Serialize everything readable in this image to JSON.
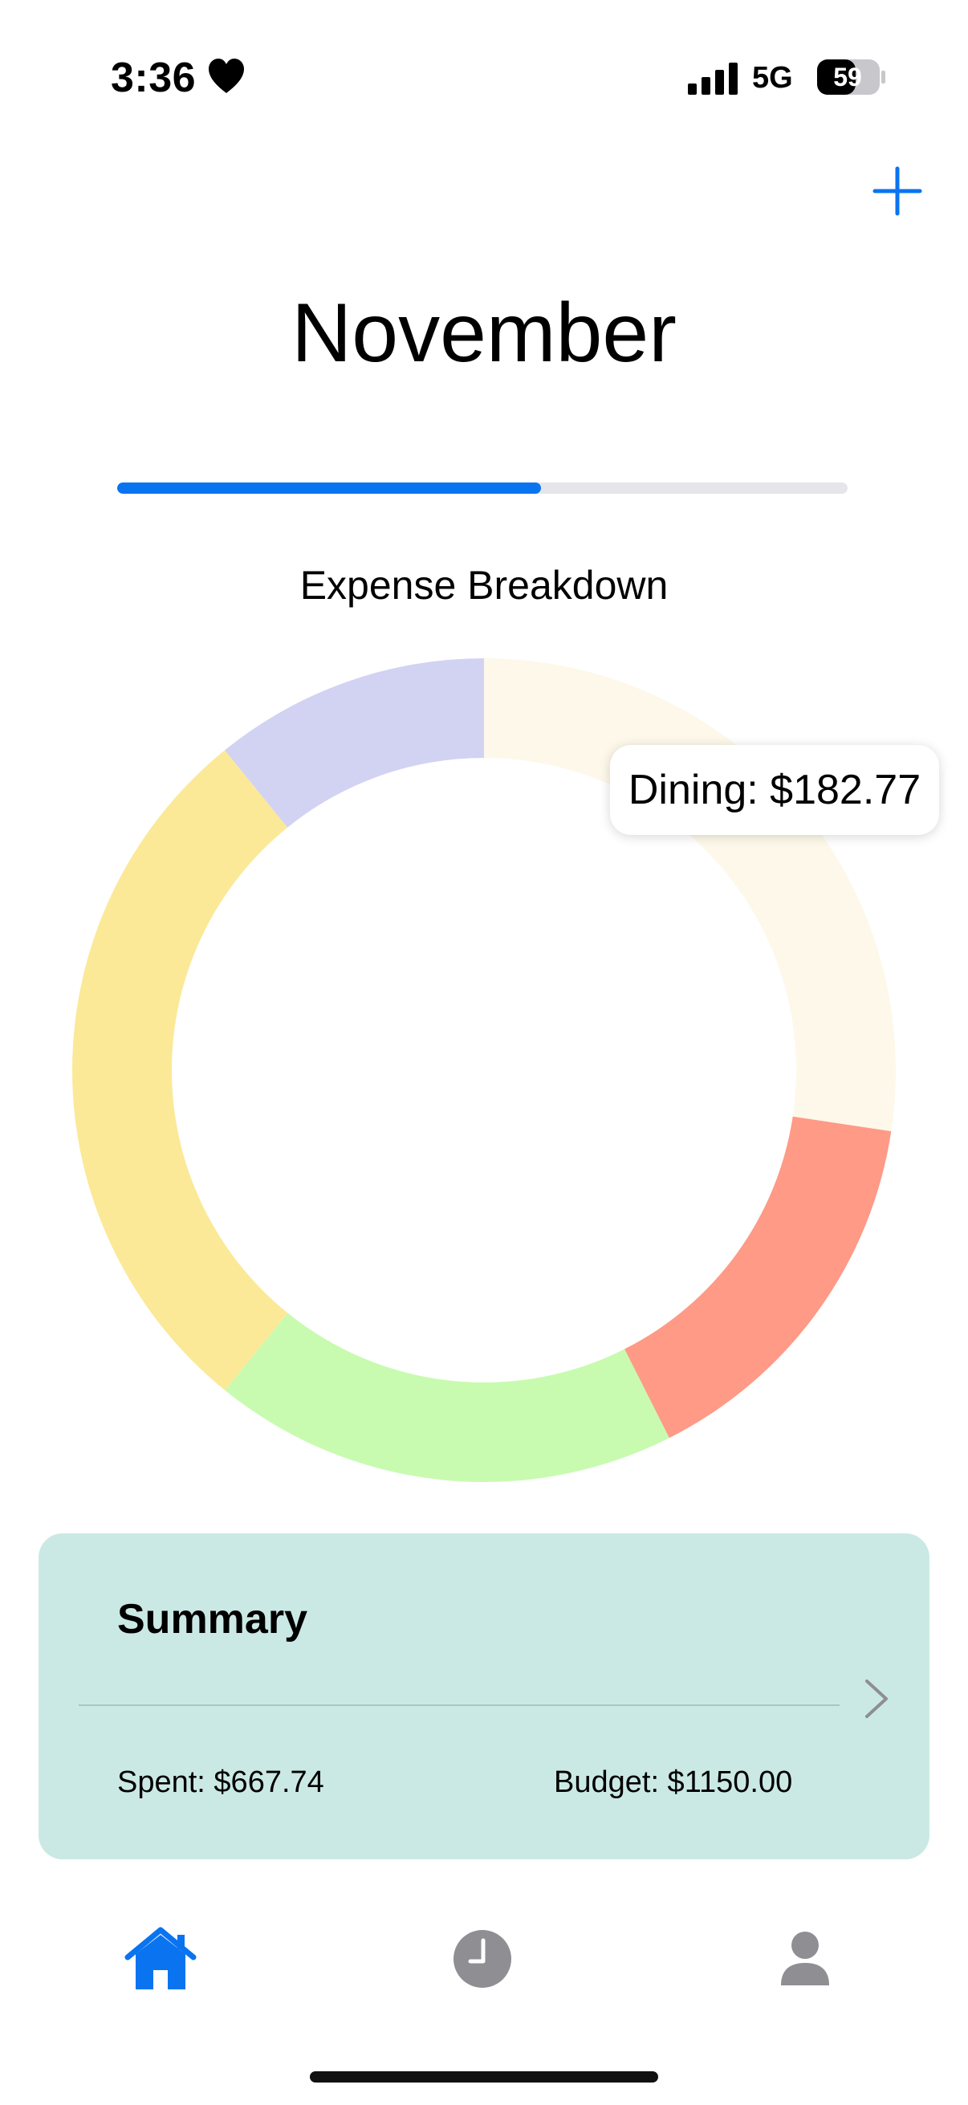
{
  "status_bar": {
    "time": "3:36",
    "network": "5G",
    "battery": "59"
  },
  "header": {
    "add_icon": "plus-icon",
    "month": "November"
  },
  "progress": {
    "fraction": 0.58,
    "color": "#0a74f0"
  },
  "chart_data": {
    "type": "pie",
    "title": "Expense Breakdown",
    "slices": [
      {
        "value": 182.77,
        "color": "#fdf8ea"
      },
      {
        "value": 101.5,
        "color": "#fe9a86"
      },
      {
        "value": 121.9,
        "color": "#c8fbb0"
      },
      {
        "value": 189.2,
        "color": "#fbe998"
      },
      {
        "value": 72.37,
        "color": "#d2d2f3"
      }
    ],
    "tooltip": "Dining: $182.77"
  },
  "summary": {
    "title": "Summary",
    "spent": "Spent: $667.74",
    "budget": "Budget: $1150.00",
    "card_color": "#cbe9e4"
  },
  "tabs": [
    {
      "icon": "home-icon",
      "active": true
    },
    {
      "icon": "clock-icon",
      "active": false
    },
    {
      "icon": "person-icon",
      "active": false
    }
  ]
}
